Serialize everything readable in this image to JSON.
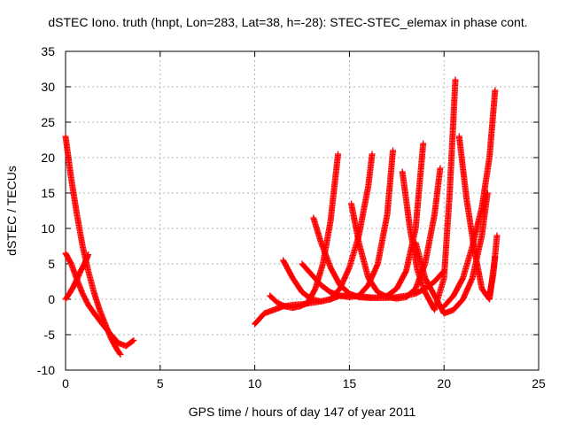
{
  "chart_data": {
    "type": "scatter",
    "title": "dSTEC Iono. truth (hnpt, Lon=283, Lat=38, h=-28): STEC-STEC_elemax in phase cont.",
    "xlabel": "GPS time / hours of day 147 of year 2011",
    "ylabel": "dSTEC  / TECUs",
    "xlim": [
      0,
      25
    ],
    "ylim": [
      -10,
      35
    ],
    "xticks": [
      0,
      5,
      10,
      15,
      20,
      25
    ],
    "yticks": [
      -10,
      -5,
      0,
      5,
      10,
      15,
      20,
      25,
      30,
      35
    ],
    "grid": true,
    "marker": "+",
    "color": "#ff0000",
    "series": [
      {
        "x": [
          0.0,
          0.3,
          0.6,
          0.9,
          1.2,
          1.5,
          1.8,
          2.1,
          2.4,
          2.7,
          2.9
        ],
        "y": [
          23.0,
          17.0,
          12.0,
          7.5,
          4.0,
          1.0,
          -1.5,
          -3.5,
          -5.5,
          -7.0,
          -7.8
        ]
      },
      {
        "x": [
          0.0,
          0.3,
          0.6,
          0.9,
          1.2,
          1.6,
          2.0,
          2.4,
          2.8,
          3.2,
          3.6
        ],
        "y": [
          6.5,
          5.0,
          2.8,
          0.8,
          -0.8,
          -2.3,
          -3.7,
          -5.0,
          -6.2,
          -6.6,
          -5.8
        ]
      },
      {
        "x": [
          0.0,
          0.2,
          0.4,
          0.6,
          0.8,
          1.0,
          1.2
        ],
        "y": [
          0.0,
          0.8,
          1.7,
          2.8,
          4.0,
          5.0,
          6.3
        ]
      },
      {
        "x": [
          10.0,
          10.5,
          11.0,
          11.5,
          12.0,
          12.5,
          13.0,
          13.5,
          14.0,
          14.5,
          15.0,
          15.5,
          16.0,
          16.5,
          17.0,
          17.5,
          18.0,
          18.5,
          19.0,
          19.5,
          20.0
        ],
        "y": [
          -3.5,
          -2.0,
          -1.5,
          -1.0,
          -0.8,
          -0.7,
          -0.5,
          -0.3,
          0.0,
          0.5,
          0.5,
          0.4,
          0.3,
          0.2,
          0.2,
          0.3,
          0.5,
          0.8,
          1.5,
          2.5,
          4.0
        ]
      },
      {
        "x": [
          10.8,
          11.2,
          11.6,
          12.0,
          12.4,
          12.8,
          13.2,
          13.6,
          14.0,
          14.4
        ],
        "y": [
          0.5,
          -0.5,
          -1.0,
          -1.2,
          -1.0,
          -0.5,
          1.5,
          5.0,
          11.0,
          20.5
        ]
      },
      {
        "x": [
          11.5,
          12.0,
          12.5,
          13.0,
          13.5,
          14.0,
          14.5,
          15.0,
          15.5,
          16.0,
          16.2
        ],
        "y": [
          5.5,
          3.0,
          1.0,
          0.0,
          -0.3,
          0.0,
          1.5,
          4.5,
          9.0,
          16.0,
          20.5
        ]
      },
      {
        "x": [
          12.5,
          13.0,
          13.5,
          14.0,
          14.5,
          15.0,
          15.5,
          16.0,
          16.5,
          17.0,
          17.3
        ],
        "y": [
          5.0,
          3.5,
          2.0,
          1.0,
          0.5,
          0.3,
          0.5,
          2.0,
          5.0,
          12.0,
          21.0
        ]
      },
      {
        "x": [
          13.1,
          13.5,
          14.0,
          14.5,
          15.0,
          15.5,
          16.0,
          16.5,
          17.0,
          17.5,
          18.0,
          18.5,
          18.9
        ],
        "y": [
          11.5,
          8.0,
          4.5,
          2.0,
          0.8,
          0.3,
          0.2,
          0.2,
          0.5,
          1.5,
          4.0,
          10.0,
          22.0
        ]
      },
      {
        "x": [
          15.1,
          15.5,
          16.0,
          16.5,
          17.0,
          17.5,
          18.0,
          18.5,
          19.0,
          19.5,
          19.8
        ],
        "y": [
          13.5,
          8.0,
          3.0,
          1.0,
          0.3,
          0.1,
          0.3,
          1.5,
          5.0,
          12.0,
          18.5
        ]
      },
      {
        "x": [
          17.8,
          18.2,
          18.6,
          19.0,
          19.5,
          20.0,
          20.3,
          20.6
        ],
        "y": [
          18.0,
          10.0,
          4.0,
          1.0,
          -1.5,
          3.0,
          15.0,
          31.0
        ]
      },
      {
        "x": [
          18.5,
          19.0,
          19.5,
          20.0,
          20.5,
          21.0,
          21.5,
          22.0,
          22.3
        ],
        "y": [
          8.0,
          3.0,
          0.5,
          -2.0,
          -1.5,
          0.0,
          3.0,
          9.0,
          15.0
        ]
      },
      {
        "x": [
          20.8,
          21.2,
          21.6,
          22.0,
          22.4,
          22.7
        ],
        "y": [
          23.0,
          14.0,
          7.0,
          1.5,
          0.0,
          6.0
        ]
      },
      {
        "x": [
          20.0,
          20.5,
          21.0,
          21.5,
          22.0,
          22.4,
          22.7
        ],
        "y": [
          -1.0,
          0.5,
          3.0,
          7.5,
          13.0,
          20.0,
          29.5
        ]
      },
      {
        "x": [
          22.4,
          22.6,
          22.8
        ],
        "y": [
          0.5,
          3.5,
          9.0
        ]
      }
    ]
  }
}
